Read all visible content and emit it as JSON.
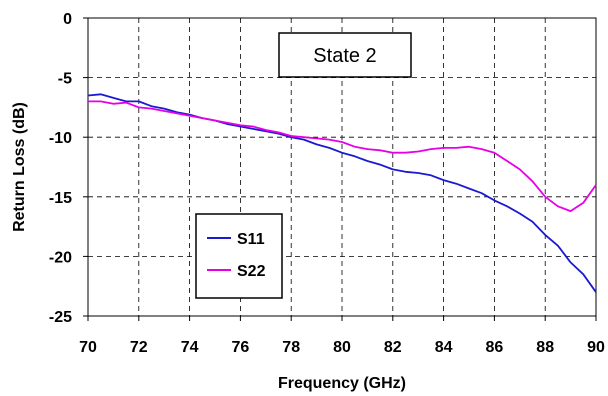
{
  "chart_data": {
    "type": "line",
    "title": "",
    "xlabel": "Frequency (GHz)",
    "ylabel": "Return Loss (dB)",
    "xlim": [
      70,
      90
    ],
    "ylim": [
      -25,
      0
    ],
    "x_ticks": [
      70,
      72,
      74,
      76,
      78,
      80,
      82,
      84,
      86,
      88,
      90
    ],
    "y_ticks": [
      0,
      -5,
      -10,
      -15,
      -20,
      -25
    ],
    "grid": true,
    "legend_position": "bottom-left",
    "annotation": "State 2",
    "series": [
      {
        "name": "S11",
        "color": "#1a1ad0",
        "x": [
          70,
          70.5,
          71,
          71.5,
          72,
          72.5,
          73,
          73.5,
          74,
          74.5,
          75,
          75.5,
          76,
          76.5,
          77,
          77.5,
          78,
          78.5,
          79,
          79.5,
          80,
          80.5,
          81,
          81.5,
          82,
          82.5,
          83,
          83.5,
          84,
          84.5,
          85,
          85.5,
          86,
          86.5,
          87,
          87.5,
          88,
          88.5,
          89,
          89.5,
          90
        ],
        "y": [
          -6.5,
          -6.4,
          -6.7,
          -7.0,
          -7.0,
          -7.4,
          -7.6,
          -7.9,
          -8.1,
          -8.4,
          -8.6,
          -8.9,
          -9.1,
          -9.3,
          -9.5,
          -9.7,
          -10.0,
          -10.2,
          -10.6,
          -10.9,
          -11.3,
          -11.6,
          -12.0,
          -12.3,
          -12.7,
          -12.9,
          -13.0,
          -13.2,
          -13.6,
          -13.9,
          -14.3,
          -14.7,
          -15.3,
          -15.8,
          -16.4,
          -17.1,
          -18.2,
          -19.1,
          -20.5,
          -21.5,
          -23.0
        ]
      },
      {
        "name": "S22",
        "color": "#e600e6",
        "x": [
          70,
          70.5,
          71,
          71.5,
          72,
          72.5,
          73,
          73.5,
          74,
          74.5,
          75,
          75.5,
          76,
          76.5,
          77,
          77.5,
          78,
          78.5,
          79,
          79.5,
          80,
          80.5,
          81,
          81.5,
          82,
          82.5,
          83,
          83.5,
          84,
          84.5,
          85,
          85.5,
          86,
          86.5,
          87,
          87.5,
          88,
          88.5,
          89,
          89.5,
          90
        ],
        "y": [
          -7.0,
          -7.0,
          -7.2,
          -7.1,
          -7.5,
          -7.6,
          -7.8,
          -8.0,
          -8.2,
          -8.4,
          -8.6,
          -8.8,
          -9.0,
          -9.1,
          -9.4,
          -9.6,
          -9.9,
          -10.0,
          -10.1,
          -10.2,
          -10.4,
          -10.8,
          -11.0,
          -11.1,
          -11.3,
          -11.3,
          -11.2,
          -11.0,
          -10.9,
          -10.9,
          -10.8,
          -11.0,
          -11.3,
          -12.0,
          -12.7,
          -13.7,
          -15.0,
          -15.8,
          -16.2,
          -15.5,
          -14.0
        ]
      }
    ]
  }
}
